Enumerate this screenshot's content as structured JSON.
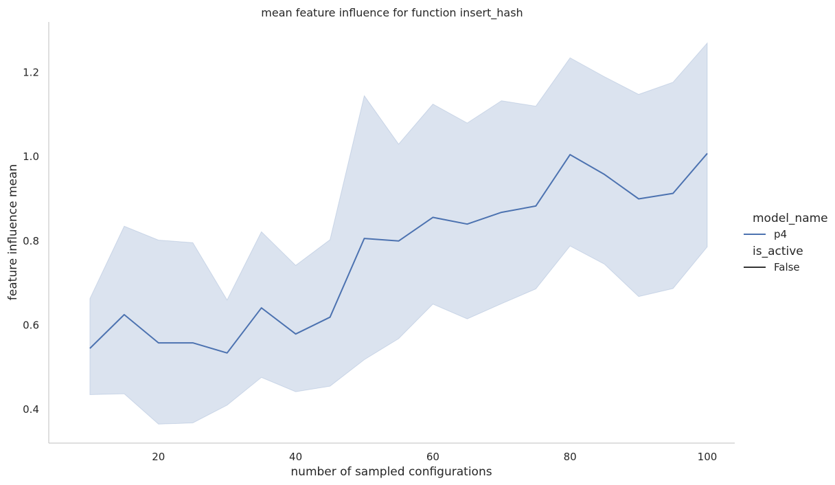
{
  "chart_data": {
    "type": "line",
    "title": "mean feature influence for function insert_hash",
    "xlabel": "number of sampled configurations",
    "ylabel": "feature influence mean",
    "xlim": [
      4,
      104
    ],
    "ylim": [
      0.32,
      1.32
    ],
    "xticks": [
      20,
      40,
      60,
      80,
      100
    ],
    "yticks": [
      0.4,
      0.6,
      0.8,
      1.0,
      1.2
    ],
    "xtick_labels": [
      "20",
      "40",
      "60",
      "80",
      "100"
    ],
    "ytick_labels": [
      "0.4",
      "0.6",
      "0.8",
      "1.0",
      "1.2"
    ],
    "grid": false,
    "legend_position": "right",
    "x": [
      10,
      15,
      20,
      25,
      30,
      35,
      40,
      45,
      50,
      55,
      60,
      65,
      70,
      75,
      80,
      85,
      90,
      95,
      100
    ],
    "series": [
      {
        "name": "p4",
        "values": [
          0.545,
          0.625,
          0.558,
          0.558,
          0.534,
          0.641,
          0.579,
          0.619,
          0.806,
          0.8,
          0.856,
          0.84,
          0.868,
          0.883,
          1.005,
          0.958,
          0.9,
          0.913,
          1.008
        ],
        "ci_upper": [
          0.663,
          0.835,
          0.802,
          0.796,
          0.66,
          0.822,
          0.742,
          0.803,
          1.145,
          1.03,
          1.125,
          1.08,
          1.133,
          1.12,
          1.235,
          1.19,
          1.148,
          1.177,
          1.27
        ],
        "ci_lower": [
          0.435,
          0.437,
          0.365,
          0.368,
          0.41,
          0.476,
          0.442,
          0.455,
          0.518,
          0.568,
          0.65,
          0.615,
          0.651,
          0.686,
          0.788,
          0.745,
          0.668,
          0.687,
          0.786
        ]
      }
    ],
    "legend": {
      "hue_title": "model_name",
      "hue_entries": [
        "p4"
      ],
      "style_title": "is_active",
      "style_entries": [
        "False"
      ]
    },
    "colors": {
      "line": "#4c72b0",
      "band": "#4c72b0",
      "axis": "#cccccc",
      "style_line": "#333333",
      "text": "#262626"
    }
  }
}
